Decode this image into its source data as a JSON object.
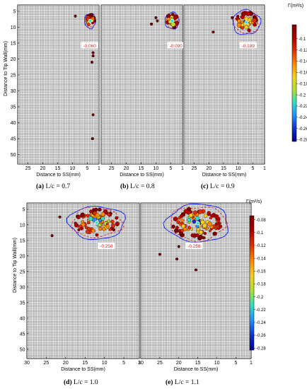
{
  "captions": [
    {
      "letter": "(a)",
      "text": "L/c = 0.7"
    },
    {
      "letter": "(b)",
      "text": "L/c = 0.8"
    },
    {
      "letter": "(c)",
      "text": "L/c = 0.9"
    },
    {
      "letter": "(d)",
      "text": "L/c = 1.0"
    },
    {
      "letter": "(e)",
      "text": "L/c = 1.1"
    }
  ],
  "colorbars": [
    {
      "label": "Γ(m²/s)",
      "ticks": [
        "-0.1",
        "-0.12",
        "-0.14",
        "-0.16",
        "-0.18",
        "-0.2",
        "-0.22",
        "-0.24",
        "-0.26",
        "-0.28"
      ]
    },
    {
      "label": "Γ(m²/s)",
      "ticks": [
        "-0.08",
        "-0.1",
        "-0.12",
        "-0.14",
        "-0.16",
        "-0.18",
        "-0.2",
        "-0.22",
        "-0.24",
        "-0.26",
        "-0.28"
      ]
    }
  ],
  "chart_data": [
    {
      "type": "scatter",
      "panel": "a",
      "xlabel": "Distance to SS(mm)",
      "ylabel": "Distance to Tip Wall(mm)",
      "xlim": [
        28.5,
        1
      ],
      "ylim": [
        53,
        3
      ],
      "xticks": [
        25,
        20,
        15,
        10,
        5,
        1
      ],
      "yticks": [
        5,
        10,
        15,
        20,
        25,
        30,
        35,
        40,
        45,
        50
      ],
      "x_reversed": true,
      "y_reversed": true,
      "grid": true,
      "annotation": {
        "text": "-0.060",
        "x": 4.2,
        "y": 15.8
      },
      "vortex_core": {
        "cx": 4,
        "cy": 8,
        "rx": 1.6,
        "ry": 2
      },
      "isolated_points": [
        [
          9,
          6.5
        ],
        [
          3,
          18
        ],
        [
          3,
          19
        ],
        [
          3.4,
          21
        ],
        [
          3,
          37.5
        ],
        [
          3.2,
          45
        ]
      ]
    },
    {
      "type": "scatter",
      "panel": "b",
      "xlabel": "Distance to SS(mm)",
      "ylabel": "",
      "xlim": [
        28.5,
        1
      ],
      "ylim": [
        53,
        3
      ],
      "xticks": [
        25,
        20,
        15,
        10,
        5,
        1
      ],
      "yticks": [],
      "x_reversed": true,
      "y_reversed": true,
      "grid": true,
      "annotation": {
        "text": "-0.090",
        "x": 3.2,
        "y": 15.8
      },
      "vortex_core": {
        "cx": 4.5,
        "cy": 8,
        "rx": 2,
        "ry": 2.2
      },
      "isolated_points": [
        [
          10,
          7
        ],
        [
          9.5,
          8
        ],
        [
          11.5,
          9
        ]
      ]
    },
    {
      "type": "scatter",
      "panel": "c",
      "xlabel": "Distance to SS(mm)",
      "ylabel": "",
      "xlim": [
        28.5,
        1
      ],
      "ylim": [
        53,
        3
      ],
      "xticks": [
        25,
        20,
        15,
        10,
        5,
        1
      ],
      "yticks": [],
      "x_reversed": true,
      "y_reversed": true,
      "grid": true,
      "annotation": {
        "text": "-0.189",
        "x": 6.6,
        "y": 15.8
      },
      "vortex_core": {
        "cx": 7.2,
        "cy": 8.5,
        "rx": 4,
        "ry": 3.3
      },
      "isolated_points": [
        [
          18.5,
          11.5
        ],
        [
          12,
          7
        ]
      ]
    },
    {
      "type": "scatter",
      "panel": "d",
      "xlabel": "Distance to SS(mm)",
      "ylabel": "Distance to Tip Wall(mm)",
      "xlim": [
        30,
        1
      ],
      "ylim": [
        53,
        3
      ],
      "xticks": [
        30,
        25,
        20,
        15,
        10,
        5,
        1
      ],
      "yticks": [
        5,
        10,
        15,
        20,
        25,
        30,
        35,
        40,
        45,
        50
      ],
      "x_reversed": true,
      "y_reversed": true,
      "grid": true,
      "annotation": {
        "text": "-0.258",
        "x": 9.5,
        "y": 16.8
      },
      "vortex_core": {
        "cx": 12,
        "cy": 9.3,
        "rx": 6.2,
        "ry": 4.5
      },
      "isolated_points": [
        [
          21.5,
          7.5
        ],
        [
          23.5,
          13.5
        ]
      ]
    },
    {
      "type": "scatter",
      "panel": "e",
      "xlabel": "Distance to SS(mm)",
      "ylabel": "",
      "xlim": [
        30,
        1
      ],
      "ylim": [
        53,
        3
      ],
      "xticks": [
        30,
        25,
        20,
        15,
        10,
        5,
        1
      ],
      "yticks": [],
      "x_reversed": true,
      "y_reversed": true,
      "grid": true,
      "annotation": {
        "text": "-0.258",
        "x": 16,
        "y": 16.8
      },
      "vortex_core": {
        "cx": 15,
        "cy": 9.5,
        "rx": 7,
        "ry": 5.2
      },
      "isolated_points": [
        [
          25,
          19.5
        ],
        [
          20,
          17
        ],
        [
          20.5,
          21
        ],
        [
          15.5,
          24.5
        ]
      ]
    }
  ],
  "colors": {
    "grid": "#444444",
    "outline_blue": "#1a2bff",
    "outline_red": "#e02020",
    "annotation_red": "#e02020",
    "point_dark": "#6a0c0c",
    "cmap": [
      "#7a0000",
      "#b00000",
      "#e03000",
      "#ff8800",
      "#f5d020",
      "#b0e030",
      "#30e0c0",
      "#2090ff",
      "#1030d0",
      "#00008f"
    ]
  }
}
